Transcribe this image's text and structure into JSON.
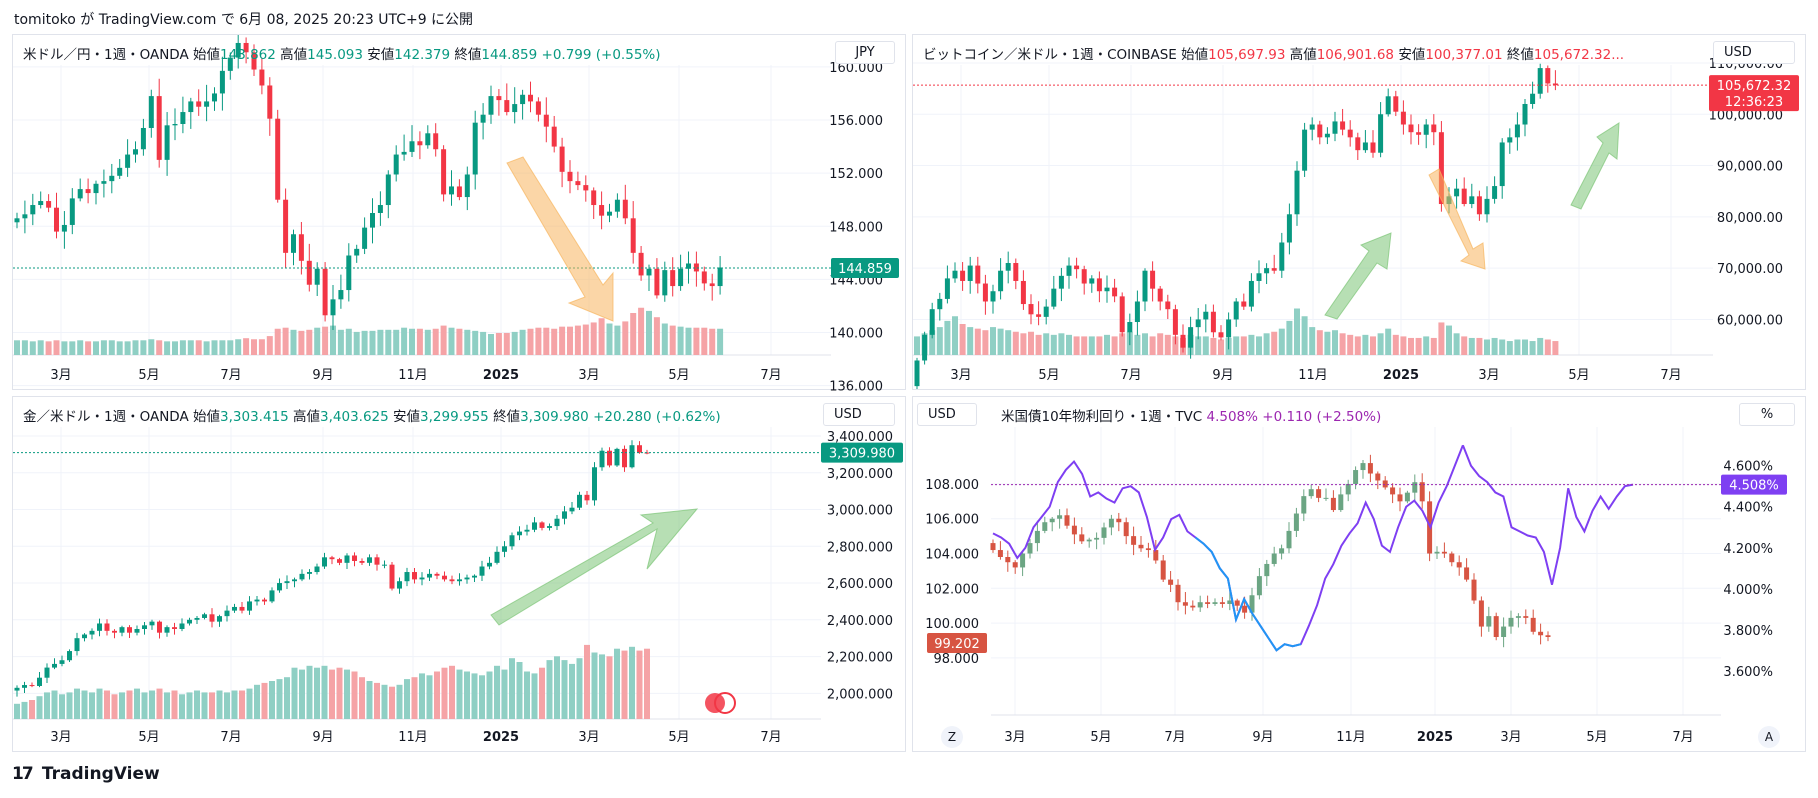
{
  "header": {
    "text": "tomitoko が TradingView.com で 6月 08, 2025 20:23 UTC+9 に公開"
  },
  "footer": {
    "logo_text": "TradingView"
  },
  "panels": [
    {
      "symbol": "米ドル／円・1週・OANDA",
      "ohlc": {
        "o_label": "始値",
        "o": "143.862",
        "h_label": "高値",
        "h": "145.093",
        "l_label": "安値",
        "l": "142.379",
        "c_label": "終値",
        "c": "144.859",
        "chg": "+0.799 (+0.55%)"
      },
      "currency": "JPY",
      "price_badge": "144.859"
    },
    {
      "symbol": "ビットコイン／米ドル・1週・COINBASE",
      "ohlc": {
        "o_label": "始値",
        "o": "105,697.93",
        "h_label": "高値",
        "h": "106,901.68",
        "l_label": "安値",
        "l": "100,377.01",
        "c_label": "終値",
        "c": "105,672.32..."
      },
      "currency": "USD",
      "price_badge": "105,672.32",
      "countdown": "12:36:23"
    },
    {
      "symbol": "金／米ドル・1週・OANDA",
      "ohlc": {
        "o_label": "始値",
        "o": "3,303.415",
        "h_label": "高値",
        "h": "3,403.625",
        "l_label": "安値",
        "l": "3,299.955",
        "c_label": "終値",
        "c": "3,309.980",
        "chg": "+20.280 (+0.62%)"
      },
      "currency": "USD",
      "price_badge": "3,309.980"
    },
    {
      "symbol": "米国債10年物利回り・1週・TVC",
      "ohlc": {
        "c": "4.508%",
        "chg": "+0.110 (+2.50%)"
      },
      "currency_left": "USD",
      "currency_right": "%",
      "price_badge_right": "4.508%",
      "price_badge_left": "99.202",
      "corner_left": "Z",
      "corner_right": "A"
    }
  ],
  "colors": {
    "up": "#089981",
    "down": "#f23645",
    "up_vol": "#8fcfc4",
    "down_vol": "#f5a3a6",
    "purple": "#9c27b0",
    "blue_line": "#2196f3",
    "orange_arrow": "#f7b55e",
    "green_arrow": "#7cc576"
  },
  "chart_data": [
    {
      "type": "candlestick",
      "title": "米ドル／円・1週・OANDA",
      "x_ticks": [
        "3月",
        "5月",
        "7月",
        "9月",
        "11月",
        "2025",
        "3月",
        "5月",
        "7月"
      ],
      "y_ticks": [
        "160.000",
        "156.000",
        "152.000",
        "148.000",
        "144.000",
        "140.000",
        "136.000"
      ],
      "ylim": [
        135.6,
        162.4
      ],
      "last_price": 144.859,
      "closes": [
        148.6,
        148.9,
        149.6,
        149.9,
        149.4,
        147.6,
        148.1,
        150.1,
        150.8,
        150.5,
        151.2,
        151.4,
        151.8,
        152.4,
        153.4,
        153.8,
        155.4,
        157.8,
        153.0,
        155.6,
        155.7,
        156.6,
        157.4,
        157.0,
        157.4,
        158.0,
        159.7,
        160.7,
        161.8,
        161.1,
        159.8,
        158.6,
        156.1,
        150.0,
        146.0,
        147.4,
        145.4,
        143.6,
        144.8,
        141.3,
        142.5,
        143.2,
        145.8,
        146.3,
        147.9,
        149.0,
        149.6,
        151.9,
        153.4,
        153.6,
        154.4,
        154.1,
        155.0,
        153.8,
        150.4,
        151.0,
        150.2,
        151.9,
        155.8,
        156.4,
        157.8,
        157.5,
        156.6,
        157.2,
        157.9,
        157.4,
        156.4,
        155.5,
        154.0,
        152.1,
        151.4,
        151.1,
        150.7,
        149.6,
        148.8,
        149.1,
        150.0,
        148.6,
        146.0,
        144.3,
        144.8,
        142.8,
        144.7,
        143.5,
        144.8,
        145.2,
        144.6,
        143.7,
        143.5,
        144.9
      ],
      "volumes": [
        14,
        14,
        13,
        14,
        13,
        14,
        13,
        13,
        14,
        13,
        13,
        14,
        14,
        13,
        13,
        14,
        14,
        15,
        14,
        13,
        13,
        14,
        14,
        14,
        13,
        14,
        14,
        14,
        15,
        16,
        15,
        15,
        18,
        25,
        26,
        24,
        23,
        24,
        26,
        27,
        28,
        24,
        25,
        22,
        23,
        23,
        24,
        24,
        24,
        26,
        25,
        25,
        24,
        25,
        28,
        26,
        25,
        24,
        23,
        22,
        20,
        21,
        21,
        22,
        24,
        25,
        26,
        26,
        25,
        27,
        27,
        28,
        29,
        31,
        35,
        30,
        28,
        32,
        40,
        45,
        42,
        36,
        30,
        28,
        27,
        26,
        26,
        26,
        25,
        25
      ]
    },
    {
      "type": "candlestick",
      "title": "ビットコイン／米ドル・1週・COINBASE",
      "x_ticks": [
        "3月",
        "5月",
        "7月",
        "9月",
        "11月",
        "2025",
        "3月",
        "5月",
        "7月"
      ],
      "y_ticks": [
        "110,000.00",
        "100,000.00",
        "90,000.00",
        "80,000.00",
        "70,000.00",
        "60,000.00"
      ],
      "ylim": [
        48000,
        113500
      ],
      "last_price": 105672.32,
      "closes": [
        52000,
        57000,
        62000,
        64000,
        68000,
        69500,
        67500,
        70500,
        67000,
        63500,
        65500,
        69500,
        71000,
        67500,
        63000,
        61000,
        60500,
        62500,
        66000,
        68500,
        70500,
        69800,
        67000,
        68000,
        65500,
        66200,
        64500,
        57500,
        59500,
        63500,
        69500,
        66000,
        63500,
        62000,
        57000,
        54500,
        58500,
        60000,
        61500,
        57500,
        56500,
        60000,
        63500,
        62500,
        67500,
        69000,
        70000,
        69500,
        75000,
        80500,
        89000,
        97000,
        98000,
        95500,
        96200,
        98600,
        97000,
        95500,
        93000,
        94500,
        92500,
        100000,
        103500,
        100500,
        98000,
        96500,
        96000,
        98000,
        96500,
        82500,
        84000,
        85500,
        82500,
        84000,
        80500,
        83500,
        86000,
        94500,
        95500,
        98000,
        102000,
        104000,
        109000,
        106000,
        105672
      ],
      "volumes": [
        12,
        14,
        16,
        18,
        22,
        25,
        20,
        18,
        17,
        16,
        18,
        17,
        16,
        15,
        14,
        15,
        13,
        14,
        13,
        14,
        13,
        12,
        12,
        12,
        12,
        13,
        12,
        14,
        15,
        13,
        14,
        12,
        14,
        13,
        12,
        11,
        13,
        12,
        12,
        11,
        10,
        11,
        12,
        12,
        13,
        12,
        14,
        15,
        17,
        22,
        30,
        25,
        18,
        16,
        15,
        16,
        14,
        13,
        12,
        13,
        12,
        14,
        17,
        13,
        12,
        11,
        11,
        12,
        11,
        21,
        19,
        14,
        12,
        11,
        11,
        10,
        11,
        10,
        9,
        10,
        10,
        9,
        11,
        10,
        9
      ]
    },
    {
      "type": "candlestick",
      "title": "金／米ドル・1週・OANDA",
      "x_ticks": [
        "3月",
        "5月",
        "7月",
        "9月",
        "11月",
        "2025",
        "3月",
        "5月",
        "7月"
      ],
      "y_ticks": [
        "3,400.000",
        "3,200.000",
        "3,000.000",
        "2,800.000",
        "2,600.000",
        "2,400.000",
        "2,200.000",
        "2,000.000"
      ],
      "ylim": [
        1980,
        3460
      ],
      "last_price": 3309.98,
      "closes": [
        2030,
        2045,
        2040,
        2085,
        2140,
        2160,
        2180,
        2230,
        2300,
        2320,
        2340,
        2380,
        2340,
        2330,
        2360,
        2330,
        2350,
        2370,
        2390,
        2330,
        2360,
        2350,
        2380,
        2400,
        2410,
        2430,
        2390,
        2420,
        2450,
        2470,
        2450,
        2500,
        2510,
        2500,
        2560,
        2600,
        2610,
        2620,
        2650,
        2660,
        2690,
        2740,
        2730,
        2710,
        2750,
        2720,
        2710,
        2740,
        2700,
        2700,
        2570,
        2610,
        2660,
        2620,
        2630,
        2650,
        2640,
        2620,
        2610,
        2620,
        2630,
        2640,
        2690,
        2710,
        2770,
        2800,
        2860,
        2880,
        2890,
        2930,
        2900,
        2910,
        2950,
        2990,
        3010,
        3080,
        3050,
        3230,
        3320,
        3240,
        3330,
        3230,
        3350,
        3310,
        3309
      ],
      "volumes": [
        8,
        9,
        10,
        12,
        14,
        15,
        13,
        14,
        16,
        15,
        14,
        16,
        15,
        13,
        14,
        15,
        16,
        14,
        15,
        16,
        14,
        15,
        13,
        14,
        15,
        14,
        14,
        15,
        14,
        15,
        15,
        16,
        18,
        19,
        20,
        21,
        22,
        27,
        26,
        28,
        27,
        28,
        26,
        27,
        26,
        25,
        22,
        20,
        19,
        18,
        17,
        18,
        21,
        22,
        24,
        23,
        25,
        27,
        28,
        26,
        25,
        24,
        23,
        25,
        28,
        26,
        32,
        30,
        25,
        24,
        27,
        31,
        33,
        31,
        29,
        32,
        39,
        35,
        34,
        33,
        37,
        36,
        38,
        36,
        37
      ]
    },
    {
      "type": "candlestick+line",
      "title": "米国債10年物利回り・1週・TVC",
      "x_ticks": [
        "3月",
        "5月",
        "7月",
        "9月",
        "11月",
        "2025",
        "3月",
        "5月",
        "7月"
      ],
      "y_ticks_left": [
        "108.000",
        "106.000",
        "104.000",
        "102.000",
        "100.000",
        "98.000"
      ],
      "y_ticks_right": [
        "4.600%",
        "4.400%",
        "4.200%",
        "4.000%",
        "3.800%",
        "3.600%"
      ],
      "ylim_left": [
        96.9,
        110.7
      ],
      "ylim_right": [
        3.57,
        4.74
      ],
      "last_yield": 4.508,
      "last_bond": 99.202,
      "bond_closes": [
        104.2,
        103.8,
        103.5,
        103.2,
        104.0,
        104.6,
        105.3,
        105.8,
        106.0,
        106.2,
        105.6,
        105.1,
        104.7,
        104.8,
        104.9,
        105.5,
        106.0,
        105.8,
        105.0,
        104.5,
        104.3,
        104.2,
        103.6,
        102.5,
        102.2,
        101.2,
        101.0,
        100.9,
        101.2,
        101.1,
        101.2,
        101.1,
        101.3,
        101.0,
        100.6,
        101.6,
        102.7,
        103.4,
        104.0,
        104.3,
        105.3,
        106.3,
        107.3,
        107.7,
        107.2,
        107.2,
        106.5,
        107.4,
        108.0,
        108.8,
        109.2,
        108.6,
        108.2,
        107.8,
        107.4,
        107.0,
        107.5,
        108.1,
        107.0,
        104.0,
        104.1,
        104.0,
        103.5,
        103.2,
        102.5,
        101.3,
        99.8,
        100.4,
        99.2,
        99.8,
        100.3,
        100.4,
        100.3,
        99.5,
        99.3,
        99.2
      ],
      "yield_line": [
        4.27,
        4.25,
        4.22,
        4.15,
        4.2,
        4.3,
        4.35,
        4.4,
        4.52,
        4.58,
        4.62,
        4.56,
        4.45,
        4.47,
        4.44,
        4.42,
        4.49,
        4.5,
        4.47,
        4.35,
        4.19,
        4.25,
        4.34,
        4.36,
        4.28,
        4.25,
        4.22,
        4.18,
        4.1,
        4.05,
        3.85,
        3.95,
        3.88,
        3.82,
        3.76,
        3.7,
        3.73,
        3.72,
        3.73,
        3.82,
        3.92,
        4.05,
        4.12,
        4.21,
        4.27,
        4.32,
        4.42,
        4.34,
        4.21,
        4.18,
        4.3,
        4.4,
        4.43,
        4.38,
        4.3,
        4.42,
        4.5,
        4.6,
        4.7,
        4.6,
        4.55,
        4.52,
        4.47,
        4.45,
        4.3,
        4.28,
        4.26,
        4.25,
        4.18,
        4.02,
        4.2,
        4.49,
        4.35,
        4.28,
        4.38,
        4.45,
        4.39,
        4.45,
        4.5,
        4.508
      ]
    }
  ]
}
